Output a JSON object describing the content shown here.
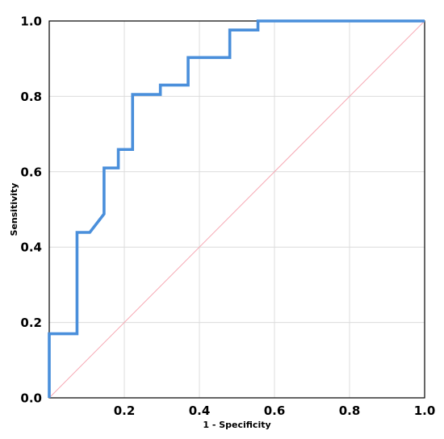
{
  "chart_data": {
    "type": "line",
    "title": "",
    "xlabel": "1 - Specificity",
    "ylabel": "Sensitivity",
    "xlim": [
      0,
      1
    ],
    "ylim": [
      0,
      1
    ],
    "grid": true,
    "x_ticks": [
      0.0,
      0.2,
      0.4,
      0.6,
      0.8,
      1.0
    ],
    "x_tick_labels": [
      "0.2",
      "0.4",
      "0.6",
      "0.8",
      "1.0"
    ],
    "y_ticks": [
      0.0,
      0.2,
      0.4,
      0.6,
      0.8,
      1.0
    ],
    "y_tick_labels": [
      "0.0",
      "0.2",
      "0.4",
      "0.6",
      "0.8",
      "1.0"
    ],
    "series": [
      {
        "color": "#4a8fdb",
        "step": true,
        "points": [
          [
            0.0,
            0.0
          ],
          [
            0.0,
            0.17
          ],
          [
            0.074,
            0.17
          ],
          [
            0.074,
            0.439
          ],
          [
            0.108,
            0.439
          ],
          [
            0.146,
            0.488
          ],
          [
            0.146,
            0.61
          ],
          [
            0.184,
            0.61
          ],
          [
            0.184,
            0.659
          ],
          [
            0.222,
            0.659
          ],
          [
            0.222,
            0.805
          ],
          [
            0.296,
            0.805
          ],
          [
            0.296,
            0.83
          ],
          [
            0.37,
            0.83
          ],
          [
            0.37,
            0.903
          ],
          [
            0.481,
            0.903
          ],
          [
            0.481,
            0.976
          ],
          [
            0.556,
            0.976
          ],
          [
            0.556,
            1.0
          ],
          [
            1.0,
            1.0
          ]
        ]
      }
    ],
    "reference_line": {
      "color": "#f7a8b3",
      "points": [
        [
          0,
          0
        ],
        [
          1,
          1
        ]
      ]
    }
  }
}
